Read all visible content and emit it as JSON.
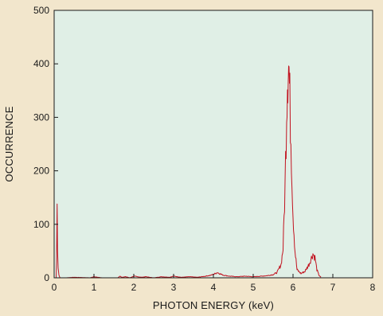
{
  "chart_data": {
    "type": "line",
    "title": "",
    "xlabel": "PHOTON ENERGY  (keV)",
    "ylabel": "OCCURRENCE",
    "xlim": [
      0,
      8
    ],
    "ylim": [
      0,
      500
    ],
    "x_ticks": [
      "0",
      "1",
      "2",
      "3",
      "4",
      "5",
      "6",
      "7",
      "8"
    ],
    "y_ticks": [
      "0",
      "100",
      "200",
      "300",
      "400",
      "500"
    ],
    "grid": false,
    "legend": "none",
    "colors": {
      "background": "#f2e6cc",
      "plot_area": "#e0efe6",
      "series": "#c1121f",
      "axis": "#1a1a1a"
    },
    "series": [
      {
        "name": "",
        "points": [
          [
            0.05,
            0
          ],
          [
            0.06,
            30
          ],
          [
            0.075,
            135
          ],
          [
            0.085,
            60
          ],
          [
            0.1,
            20
          ],
          [
            0.12,
            5
          ],
          [
            0.15,
            0
          ],
          [
            0.3,
            0
          ],
          [
            0.5,
            1
          ],
          [
            0.9,
            0
          ],
          [
            1.0,
            2
          ],
          [
            1.2,
            0
          ],
          [
            1.6,
            0
          ],
          [
            1.65,
            3
          ],
          [
            1.7,
            1
          ],
          [
            1.8,
            2
          ],
          [
            1.9,
            0
          ],
          [
            2.0,
            3
          ],
          [
            2.2,
            1
          ],
          [
            2.3,
            2
          ],
          [
            2.5,
            0
          ],
          [
            2.7,
            2
          ],
          [
            2.9,
            1
          ],
          [
            3.0,
            3
          ],
          [
            3.2,
            1
          ],
          [
            3.4,
            2
          ],
          [
            3.6,
            1
          ],
          [
            3.8,
            3
          ],
          [
            3.95,
            5
          ],
          [
            4.05,
            8
          ],
          [
            4.1,
            10
          ],
          [
            4.15,
            8
          ],
          [
            4.25,
            5
          ],
          [
            4.4,
            3
          ],
          [
            4.6,
            2
          ],
          [
            4.8,
            3
          ],
          [
            5.0,
            2
          ],
          [
            5.2,
            3
          ],
          [
            5.35,
            4
          ],
          [
            5.5,
            6
          ],
          [
            5.6,
            10
          ],
          [
            5.7,
            25
          ],
          [
            5.75,
            55
          ],
          [
            5.8,
            170
          ],
          [
            5.84,
            320
          ],
          [
            5.86,
            375
          ],
          [
            5.88,
            403
          ],
          [
            5.9,
            390
          ],
          [
            5.92,
            330
          ],
          [
            5.96,
            230
          ],
          [
            6.0,
            120
          ],
          [
            6.05,
            50
          ],
          [
            6.1,
            15
          ],
          [
            6.2,
            8
          ],
          [
            6.3,
            12
          ],
          [
            6.4,
            25
          ],
          [
            6.45,
            35
          ],
          [
            6.5,
            45
          ],
          [
            6.55,
            38
          ],
          [
            6.6,
            15
          ],
          [
            6.65,
            5
          ],
          [
            6.7,
            1
          ]
        ]
      }
    ]
  }
}
